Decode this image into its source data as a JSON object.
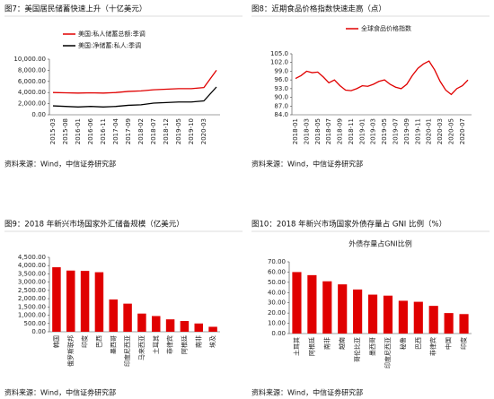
{
  "chart_data": [
    {
      "type": "line",
      "title": "图7：美国居民储蓄快速上升（十亿美元）",
      "source": "资料来源：Wind，中信证券研究部",
      "categories": [
        "2015-03",
        "2015-08",
        "2016-01",
        "2016-06",
        "2016-11",
        "2017-04",
        "2017-09",
        "2018-02",
        "2018-07",
        "2018-12",
        "2019-05",
        "2019-10",
        "2020-03",
        null
      ],
      "series": [
        {
          "name": "美国:私人储蓄总额:季调",
          "color": "#e00000",
          "values": [
            4000,
            3950,
            3900,
            3950,
            3900,
            4000,
            4200,
            4300,
            4500,
            4600,
            4700,
            4700,
            4900,
            8000
          ]
        },
        {
          "name": "美国:净储蓄:私人:季调",
          "color": "#000000",
          "values": [
            1600,
            1500,
            1400,
            1500,
            1400,
            1500,
            1700,
            1800,
            2100,
            2200,
            2300,
            2300,
            2500,
            5000
          ]
        }
      ],
      "ylim": [
        0,
        10000
      ],
      "yticks": [
        {
          "value": 0,
          "label": "0.00"
        },
        {
          "value": 2000,
          "label": "2,000.00"
        },
        {
          "value": 4000,
          "label": "4,000.00"
        },
        {
          "value": 6000,
          "label": "6,000.00"
        },
        {
          "value": 8000,
          "label": "8,000.00"
        },
        {
          "value": 10000,
          "label": "10,000.00"
        }
      ],
      "legend": "top-left"
    },
    {
      "type": "line",
      "title": "图8：近期食品价格指数快速走高（点）",
      "source": "资料来源：Wind，中信证券研究部",
      "categories": [
        "2018-01",
        null,
        "2018-03",
        null,
        "2018-05",
        null,
        "2018-07",
        null,
        "2018-09",
        null,
        "2018-11",
        null,
        "2019-01",
        null,
        "2019-03",
        null,
        "2019-05",
        null,
        "2019-07",
        null,
        "2019-09",
        null,
        "2019-11",
        null,
        "2020-01",
        null,
        "2020-03",
        null,
        "2020-05",
        null,
        "2020-07",
        null
      ],
      "series": [
        {
          "name": "全球食品价格指数",
          "color": "#e00000",
          "values": [
            96.5,
            97.5,
            99,
            98.5,
            98.7,
            97,
            95,
            96,
            94,
            92.5,
            92.3,
            93,
            94,
            93.8,
            94.5,
            95.5,
            96,
            94.5,
            93.5,
            93,
            94.5,
            97.5,
            100,
            101.5,
            102.5,
            99.5,
            95.5,
            92.5,
            91,
            93,
            94,
            96
          ]
        }
      ],
      "ylim": [
        84,
        105
      ],
      "yticks": [
        {
          "value": 84,
          "label": "84.0"
        },
        {
          "value": 87,
          "label": "87.0"
        },
        {
          "value": 90,
          "label": "90.0"
        },
        {
          "value": 93,
          "label": "93.0"
        },
        {
          "value": 96,
          "label": "96.0"
        },
        {
          "value": 99,
          "label": "99.0"
        },
        {
          "value": 102,
          "label": "102.0"
        },
        {
          "value": 105,
          "label": "105.0"
        }
      ],
      "legend": "top-center"
    },
    {
      "type": "bar",
      "title": "图9：2018 年新兴市场国家外汇储备规模（亿美元）",
      "source": "资料来源：Wind，中信证券研究部",
      "categories": [
        "韩国",
        "俄罗斯联邦",
        "印度",
        "巴西",
        "墨西哥",
        "印度尼西亚",
        "马来西亚",
        "土耳其",
        "菲律宾",
        "阿根廷",
        "南非",
        "埃及"
      ],
      "values": [
        3900,
        3700,
        3680,
        3600,
        1950,
        1700,
        1100,
        950,
        750,
        650,
        500,
        300
      ],
      "color": "#e00000",
      "ylim": [
        0,
        4500
      ],
      "yticks": [
        {
          "value": 0,
          "label": "0.00"
        },
        {
          "value": 500,
          "label": "500.00"
        },
        {
          "value": 1000,
          "label": "1,000.00"
        },
        {
          "value": 1500,
          "label": "1,500.00"
        },
        {
          "value": 2000,
          "label": "2,000.00"
        },
        {
          "value": 2500,
          "label": "2,500.00"
        },
        {
          "value": 3000,
          "label": "3,000.00"
        },
        {
          "value": 3500,
          "label": "3,500.00"
        },
        {
          "value": 4000,
          "label": "4,000.00"
        },
        {
          "value": 4500,
          "label": "4,500.00"
        }
      ]
    },
    {
      "type": "bar",
      "title": "图10：2018 年新兴市场国家外债存量占 GNI 比例（%）",
      "subtitle": "外债存量占GNI比例",
      "source": "资料来源：Wind，中信证券研究部",
      "categories": [
        "土耳其",
        "阿根廷",
        "南非",
        "越南",
        "哥伦比亚",
        "墨西哥",
        "印度尼西亚",
        "秘鲁",
        "巴西",
        "菲律宾",
        "中国",
        "印度"
      ],
      "values": [
        60,
        57,
        51,
        48,
        43,
        38,
        37,
        32,
        31,
        27,
        20,
        19
      ],
      "color": "#e00000",
      "ylim": [
        0,
        70
      ],
      "yticks": [
        {
          "value": 0,
          "label": "0.00"
        },
        {
          "value": 10,
          "label": "10.00"
        },
        {
          "value": 20,
          "label": "20.00"
        },
        {
          "value": 30,
          "label": "30.00"
        },
        {
          "value": 40,
          "label": "40.00"
        },
        {
          "value": 50,
          "label": "50.00"
        },
        {
          "value": 60,
          "label": "60.00"
        },
        {
          "value": 70,
          "label": "70.00"
        }
      ]
    }
  ]
}
